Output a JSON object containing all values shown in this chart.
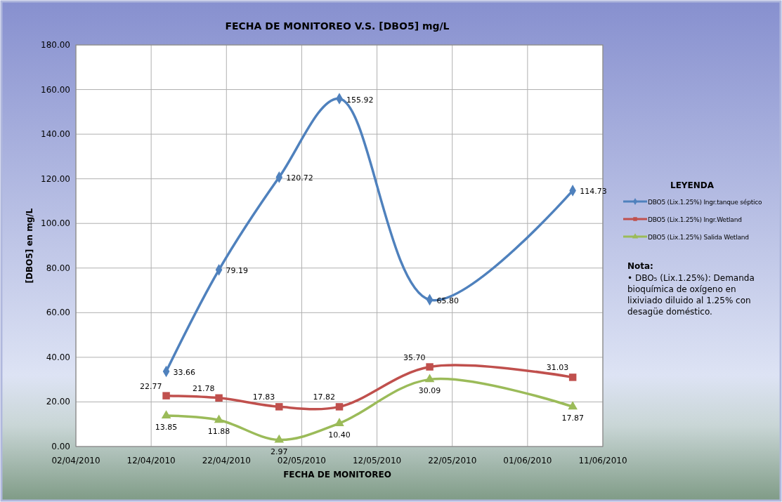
{
  "chart_data": {
    "type": "line",
    "title": "FECHA DE MONITOREO V.S. [DBO5] mg/L",
    "xlabel": "FECHA DE MONITOREO",
    "ylabel": "[DBO5] en mg/L",
    "legend_title": "LEYENDA",
    "legend": "right",
    "grid": true,
    "line_style": "solid",
    "x": [
      "2010-04-14",
      "2010-04-21",
      "2010-04-29",
      "2010-05-07",
      "2010-05-19",
      "2010-06-07"
    ],
    "xlim": [
      "2010-04-02",
      "2010-06-11"
    ],
    "xticks": [
      {
        "value": "2010-04-02",
        "label": "02/04/2010"
      },
      {
        "value": "2010-04-12",
        "label": "12/04/2010"
      },
      {
        "value": "2010-04-22",
        "label": "22/04/2010"
      },
      {
        "value": "2010-05-02",
        "label": "02/05/2010"
      },
      {
        "value": "2010-05-12",
        "label": "12/05/2010"
      },
      {
        "value": "2010-05-22",
        "label": "22/05/2010"
      },
      {
        "value": "2010-06-01",
        "label": "01/06/2010"
      },
      {
        "value": "2010-06-11",
        "label": "11/06/2010"
      }
    ],
    "ylim": [
      0,
      180
    ],
    "yticks": [
      {
        "value": 0,
        "label": "0.00"
      },
      {
        "value": 20,
        "label": "20.00"
      },
      {
        "value": 40,
        "label": "40.00"
      },
      {
        "value": 60,
        "label": "60.00"
      },
      {
        "value": 80,
        "label": "80.00"
      },
      {
        "value": 100,
        "label": "100.00"
      },
      {
        "value": 120,
        "label": "120.00"
      },
      {
        "value": 140,
        "label": "140.00"
      },
      {
        "value": 160,
        "label": "160.00"
      },
      {
        "value": 180,
        "label": "180.00"
      }
    ],
    "series": [
      {
        "name": "DBO5 (Lix.1.25%) Ingr.tanque  séptico",
        "color": "#4f81bd",
        "marker": "diamond",
        "values": [
          33.66,
          79.19,
          120.72,
          155.92,
          65.8,
          114.73
        ],
        "value_labels": [
          "33.66",
          "79.19",
          "120.72",
          "155.92",
          "65.80",
          "114.73"
        ]
      },
      {
        "name": "DBO5 (Lix.1.25%) Ingr.Wetland",
        "color": "#c0504d",
        "marker": "square",
        "values": [
          22.77,
          21.78,
          17.83,
          17.82,
          35.7,
          31.03
        ],
        "value_labels": [
          "22.77",
          "21.78",
          "17.83",
          "17.82",
          "35.70",
          "31.03"
        ]
      },
      {
        "name": "DBO5 (Lix.1.25%) Salida Wetland",
        "color": "#9bbb59",
        "marker": "triangle",
        "values": [
          13.85,
          11.88,
          2.97,
          10.4,
          30.09,
          17.87
        ],
        "value_labels": [
          "13.85",
          "11.88",
          "2.97",
          "10.40",
          "30.09",
          "17.87"
        ]
      }
    ],
    "annotations": [
      "Nota:",
      "• DBO₅ (Lix.1.25%): Demanda bioquímica de oxígeno en lixiviado diluido al 1.25% con desagüe doméstico."
    ]
  }
}
